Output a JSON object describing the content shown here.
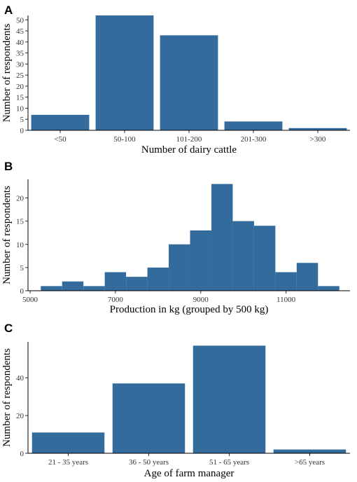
{
  "chart_data": [
    {
      "panel": "A",
      "type": "bar",
      "categories": [
        "<50",
        "50-100",
        "101-200",
        "201-300",
        ">300"
      ],
      "values": [
        7,
        52,
        43,
        4,
        1
      ],
      "xlabel": "Number of dairy cattle",
      "ylabel": "Number of respondents",
      "yticks": [
        0,
        5,
        10,
        15,
        20,
        25,
        30,
        35,
        40,
        45,
        50
      ],
      "ylim": [
        0,
        52
      ],
      "grid": false,
      "color": "#336b9c"
    },
    {
      "panel": "B",
      "type": "bar",
      "bins": [
        {
          "x0": 5250,
          "x1": 5750,
          "value": 1
        },
        {
          "x0": 5750,
          "x1": 6250,
          "value": 2
        },
        {
          "x0": 6250,
          "x1": 6750,
          "value": 1
        },
        {
          "x0": 6750,
          "x1": 7250,
          "value": 4
        },
        {
          "x0": 7250,
          "x1": 7750,
          "value": 3
        },
        {
          "x0": 7750,
          "x1": 8250,
          "value": 5
        },
        {
          "x0": 8250,
          "x1": 8750,
          "value": 10
        },
        {
          "x0": 8750,
          "x1": 9250,
          "value": 13
        },
        {
          "x0": 9250,
          "x1": 9750,
          "value": 23
        },
        {
          "x0": 9750,
          "x1": 10250,
          "value": 15
        },
        {
          "x0": 10250,
          "x1": 10750,
          "value": 14
        },
        {
          "x0": 10750,
          "x1": 11250,
          "value": 4
        },
        {
          "x0": 11250,
          "x1": 11750,
          "value": 6
        },
        {
          "x0": 11750,
          "x1": 12250,
          "value": 1
        }
      ],
      "xlabel": "Production in kg (grouped by 500 kg)",
      "ylabel": "Number of respondents",
      "xticks": [
        5000,
        7000,
        9000,
        11000
      ],
      "yticks": [
        0,
        5,
        10,
        15,
        20
      ],
      "xlim": [
        4950,
        12500
      ],
      "ylim": [
        0,
        24
      ],
      "grid": false,
      "color": "#336b9c"
    },
    {
      "panel": "C",
      "type": "bar",
      "categories": [
        "21 - 35 years",
        "36 - 50 years",
        "51 - 65 years",
        ">65 years"
      ],
      "values": [
        11,
        37,
        57,
        2
      ],
      "xlabel": "Age of farm manager",
      "ylabel": "Number of respondents",
      "yticks": [
        0,
        20,
        40
      ],
      "ylim": [
        0,
        59
      ],
      "grid": false,
      "color": "#336b9c"
    }
  ]
}
